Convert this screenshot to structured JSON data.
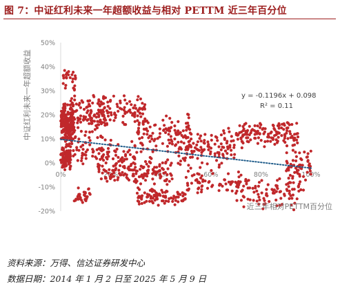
{
  "figure": {
    "title": "图 7：中证红利未来一年超额收益与相对 PETTM 近三年百分位",
    "source": "资料来源：万得、信达证券研发中心",
    "date_range": "数据日期：2014 年 1 月 2 日至 2025 年 5 月 9 日"
  },
  "colors": {
    "title": "#9c1c1c",
    "points": "#c0282b",
    "trendline": "#1f5c8a",
    "axis_text": "#7f7f7f"
  },
  "chart_data": {
    "type": "scatter",
    "xlabel": "近三年相对PETTM百分位",
    "ylabel": "中证红利未来一年超额收益",
    "xlim": [
      0,
      1
    ],
    "ylim": [
      -0.2,
      0.5
    ],
    "x_ticks": [
      "0%",
      "20%",
      "40%",
      "60%",
      "80%",
      "100%"
    ],
    "y_ticks": [
      "50%",
      "40%",
      "30%",
      "20%",
      "10%",
      "0%",
      "-10%",
      "-20%"
    ],
    "grid": false,
    "trendline": {
      "type": "linear",
      "style": "dotted",
      "equation": "y = -0.1196x + 0.098",
      "r_squared": "R² = 0.11",
      "slope": -0.1196,
      "intercept": 0.098
    },
    "clusters": [
      {
        "n": 200,
        "x": [
          0.0,
          0.05
        ],
        "y": [
          0.06,
          0.26
        ]
      },
      {
        "n": 90,
        "x": [
          0.0,
          0.04
        ],
        "y": [
          -0.03,
          0.07
        ]
      },
      {
        "n": 25,
        "x": [
          0.01,
          0.06
        ],
        "y": [
          0.28,
          0.41
        ]
      },
      {
        "n": 130,
        "x": [
          0.04,
          0.18
        ],
        "y": [
          0.08,
          0.3
        ]
      },
      {
        "n": 90,
        "x": [
          0.05,
          0.3
        ],
        "y": [
          -0.03,
          0.1
        ]
      },
      {
        "n": 30,
        "x": [
          0.05,
          0.12
        ],
        "y": [
          -0.17,
          -0.1
        ]
      },
      {
        "n": 90,
        "x": [
          0.15,
          0.35
        ],
        "y": [
          0.14,
          0.29
        ]
      },
      {
        "n": 140,
        "x": [
          0.15,
          0.45
        ],
        "y": [
          -0.1,
          0.03
        ]
      },
      {
        "n": 110,
        "x": [
          0.3,
          0.52
        ],
        "y": [
          0.03,
          0.21
        ]
      },
      {
        "n": 90,
        "x": [
          0.3,
          0.5
        ],
        "y": [
          -0.18,
          -0.1
        ]
      },
      {
        "n": 120,
        "x": [
          0.45,
          0.7
        ],
        "y": [
          -0.05,
          0.16
        ]
      },
      {
        "n": 70,
        "x": [
          0.5,
          0.75
        ],
        "y": [
          -0.13,
          -0.03
        ]
      },
      {
        "n": 130,
        "x": [
          0.7,
          0.95
        ],
        "y": [
          0.06,
          0.18
        ]
      },
      {
        "n": 90,
        "x": [
          0.7,
          0.97
        ],
        "y": [
          -0.2,
          -0.04
        ]
      },
      {
        "n": 60,
        "x": [
          0.9,
          1.0
        ],
        "y": [
          -0.1,
          0.06
        ]
      }
    ]
  }
}
